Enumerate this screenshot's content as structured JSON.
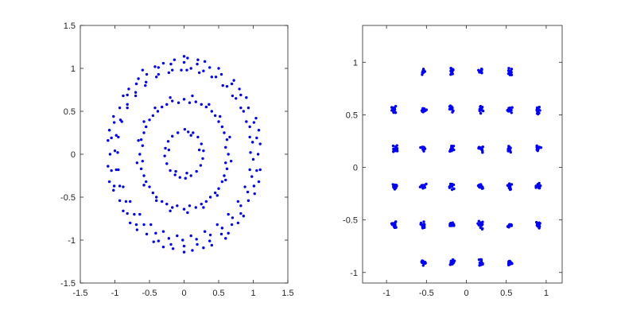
{
  "chart_data": [
    {
      "type": "scatter",
      "title": "",
      "xlabel": "",
      "ylabel": "",
      "xlim": [
        -1.5,
        1.5
      ],
      "ylim": [
        -1.5,
        1.5
      ],
      "xticks": [
        -1.5,
        -1,
        -0.5,
        0,
        0.5,
        1,
        1.5
      ],
      "yticks": [
        -1.5,
        -1,
        -0.5,
        0,
        0.5,
        1,
        1.5
      ],
      "xtick_labels": [
        "-1.5",
        "-1",
        "-0.5",
        "0",
        "0.5",
        "1",
        "1.5"
      ],
      "ytick_labels": [
        "-1.5",
        "-1",
        "-0.5",
        "0",
        "0.5",
        "1",
        "1.5"
      ],
      "grid": false,
      "marker_color": "#0000ff",
      "series": [
        {
          "points": [
            [
              0.06,
              0.26
            ],
            [
              0.13,
              0.25
            ],
            [
              0.2,
              0.2
            ],
            [
              0.25,
              0.12
            ],
            [
              0.28,
              0.04
            ],
            [
              0.27,
              -0.05
            ],
            [
              0.24,
              -0.13
            ],
            [
              0.18,
              -0.2
            ],
            [
              0.1,
              -0.25
            ],
            [
              0.02,
              -0.28
            ],
            [
              -0.06,
              -0.27
            ],
            [
              -0.13,
              -0.24
            ],
            [
              -0.2,
              -0.19
            ],
            [
              -0.25,
              -0.11
            ],
            [
              -0.28,
              -0.02
            ],
            [
              -0.27,
              0.07
            ],
            [
              -0.23,
              0.15
            ],
            [
              -0.17,
              0.21
            ],
            [
              -0.09,
              0.25
            ],
            [
              0.01,
              0.29
            ],
            [
              0.04,
              -0.22
            ],
            [
              -0.22,
              0.05
            ],
            [
              0.22,
              0.05
            ],
            [
              0.1,
              0.22
            ],
            [
              -0.12,
              -0.2
            ],
            [
              0.0,
              0.64
            ],
            [
              0.17,
              0.61
            ],
            [
              0.32,
              0.55
            ],
            [
              0.45,
              0.45
            ],
            [
              0.55,
              0.32
            ],
            [
              0.62,
              0.17
            ],
            [
              0.64,
              0.0
            ],
            [
              0.62,
              -0.17
            ],
            [
              0.55,
              -0.32
            ],
            [
              0.45,
              -0.45
            ],
            [
              0.32,
              -0.55
            ],
            [
              0.17,
              -0.62
            ],
            [
              0.0,
              -0.64
            ],
            [
              -0.17,
              -0.62
            ],
            [
              -0.32,
              -0.55
            ],
            [
              -0.45,
              -0.45
            ],
            [
              -0.55,
              -0.32
            ],
            [
              -0.62,
              -0.17
            ],
            [
              -0.64,
              0.0
            ],
            [
              -0.62,
              0.17
            ],
            [
              -0.55,
              0.32
            ],
            [
              -0.45,
              0.45
            ],
            [
              -0.32,
              0.55
            ],
            [
              -0.17,
              0.62
            ],
            [
              0.08,
              0.6
            ],
            [
              0.25,
              0.58
            ],
            [
              0.4,
              0.5
            ],
            [
              0.5,
              0.38
            ],
            [
              0.58,
              0.25
            ],
            [
              0.6,
              0.08
            ],
            [
              0.6,
              -0.1
            ],
            [
              0.58,
              -0.25
            ],
            [
              0.5,
              -0.4
            ],
            [
              0.38,
              -0.5
            ],
            [
              0.25,
              -0.58
            ],
            [
              0.08,
              -0.6
            ],
            [
              -0.1,
              -0.6
            ],
            [
              -0.25,
              -0.58
            ],
            [
              -0.4,
              -0.5
            ],
            [
              -0.5,
              -0.38
            ],
            [
              -0.58,
              -0.25
            ],
            [
              -0.6,
              -0.08
            ],
            [
              -0.6,
              0.1
            ],
            [
              -0.58,
              0.25
            ],
            [
              -0.5,
              0.4
            ],
            [
              -0.38,
              0.5
            ],
            [
              -0.25,
              0.58
            ],
            [
              -0.08,
              0.6
            ],
            [
              0.12,
              0.68
            ],
            [
              0.36,
              0.58
            ],
            [
              0.52,
              0.44
            ],
            [
              0.66,
              0.2
            ],
            [
              0.68,
              -0.08
            ],
            [
              0.6,
              -0.3
            ],
            [
              0.48,
              -0.48
            ],
            [
              0.28,
              -0.62
            ],
            [
              0.05,
              -0.68
            ],
            [
              -0.2,
              -0.66
            ],
            [
              -0.4,
              -0.54
            ],
            [
              -0.58,
              -0.36
            ],
            [
              -0.68,
              -0.1
            ],
            [
              -0.66,
              0.16
            ],
            [
              -0.58,
              0.38
            ],
            [
              -0.42,
              0.54
            ],
            [
              -0.2,
              0.66
            ],
            [
              0.0,
              1.07
            ],
            [
              0.19,
              1.05
            ],
            [
              0.37,
              1.01
            ],
            [
              0.54,
              0.93
            ],
            [
              0.69,
              0.82
            ],
            [
              0.82,
              0.69
            ],
            [
              0.93,
              0.54
            ],
            [
              1.01,
              0.37
            ],
            [
              1.05,
              0.19
            ],
            [
              1.07,
              0.0
            ],
            [
              1.05,
              -0.19
            ],
            [
              1.01,
              -0.37
            ],
            [
              0.93,
              -0.54
            ],
            [
              0.82,
              -0.69
            ],
            [
              0.69,
              -0.82
            ],
            [
              0.54,
              -0.93
            ],
            [
              0.37,
              -1.01
            ],
            [
              0.19,
              -1.05
            ],
            [
              0.0,
              -1.07
            ],
            [
              -0.19,
              -1.05
            ],
            [
              -0.37,
              -1.01
            ],
            [
              -0.54,
              -0.93
            ],
            [
              -0.69,
              -0.82
            ],
            [
              -0.82,
              -0.69
            ],
            [
              -0.93,
              -0.54
            ],
            [
              -1.01,
              -0.37
            ],
            [
              -1.05,
              -0.19
            ],
            [
              -1.07,
              0.0
            ],
            [
              -1.05,
              0.19
            ],
            [
              -1.01,
              0.37
            ],
            [
              -0.93,
              0.54
            ],
            [
              -0.82,
              0.69
            ],
            [
              -0.69,
              0.82
            ],
            [
              -0.54,
              0.93
            ],
            [
              -0.37,
              1.01
            ],
            [
              -0.19,
              1.05
            ],
            [
              0.1,
              1.0
            ],
            [
              0.28,
              0.97
            ],
            [
              0.46,
              0.9
            ],
            [
              0.62,
              0.79
            ],
            [
              0.75,
              0.65
            ],
            [
              0.86,
              0.5
            ],
            [
              0.95,
              0.32
            ],
            [
              0.99,
              0.14
            ],
            [
              1.0,
              -0.06
            ],
            [
              0.98,
              -0.26
            ],
            [
              0.92,
              -0.44
            ],
            [
              0.82,
              -0.6
            ],
            [
              0.7,
              -0.74
            ],
            [
              0.55,
              -0.86
            ],
            [
              0.38,
              -0.94
            ],
            [
              0.18,
              -0.99
            ],
            [
              -0.02,
              -1.0
            ],
            [
              -0.22,
              -0.98
            ],
            [
              -0.41,
              -0.92
            ],
            [
              -0.58,
              -0.82
            ],
            [
              -0.72,
              -0.7
            ],
            [
              -0.84,
              -0.55
            ],
            [
              -0.93,
              -0.37
            ],
            [
              -0.98,
              -0.18
            ],
            [
              -1.0,
              0.04
            ],
            [
              -0.98,
              0.22
            ],
            [
              -0.92,
              0.4
            ],
            [
              -0.82,
              0.58
            ],
            [
              -0.7,
              0.72
            ],
            [
              -0.55,
              0.84
            ],
            [
              -0.37,
              0.93
            ],
            [
              -0.17,
              0.98
            ],
            [
              0.05,
              1.12
            ],
            [
              0.3,
              1.08
            ],
            [
              0.5,
              1.0
            ],
            [
              0.72,
              0.86
            ],
            [
              0.9,
              0.66
            ],
            [
              1.04,
              0.42
            ],
            [
              1.1,
              0.12
            ],
            [
              1.1,
              -0.18
            ],
            [
              1.02,
              -0.46
            ],
            [
              0.86,
              -0.72
            ],
            [
              0.64,
              -0.92
            ],
            [
              0.4,
              -1.06
            ],
            [
              0.12,
              -1.12
            ],
            [
              -0.16,
              -1.1
            ],
            [
              -0.44,
              -1.02
            ],
            [
              -0.68,
              -0.88
            ],
            [
              -0.88,
              -0.66
            ],
            [
              -1.02,
              -0.42
            ],
            [
              -1.1,
              -0.14
            ],
            [
              -1.1,
              0.16
            ],
            [
              -1.02,
              0.44
            ],
            [
              -0.88,
              0.68
            ],
            [
              -0.66,
              0.88
            ],
            [
              -0.42,
              1.02
            ],
            [
              -0.14,
              1.1
            ],
            [
              0.2,
              1.1
            ],
            [
              -0.3,
              1.06
            ],
            [
              0.8,
              0.76
            ],
            [
              -0.8,
              0.76
            ],
            [
              1.08,
              0.28
            ],
            [
              -1.08,
              0.28
            ],
            [
              1.08,
              -0.32
            ],
            [
              -1.08,
              -0.32
            ],
            [
              0.78,
              -0.8
            ],
            [
              -0.78,
              -0.8
            ],
            [
              0.28,
              -1.09
            ],
            [
              -0.3,
              -1.08
            ],
            [
              0.0,
              -1.14
            ],
            [
              0.0,
              1.14
            ],
            [
              0.6,
              -0.98
            ],
            [
              -0.6,
              0.98
            ],
            [
              0.04,
              0.98
            ],
            [
              0.22,
              0.95
            ],
            [
              0.4,
              0.9
            ],
            [
              0.56,
              0.8
            ],
            [
              0.7,
              0.68
            ],
            [
              0.82,
              0.54
            ],
            [
              0.9,
              0.38
            ],
            [
              0.95,
              0.2
            ],
            [
              0.96,
              0.02
            ],
            [
              0.95,
              -0.18
            ],
            [
              0.88,
              -0.38
            ],
            [
              0.78,
              -0.55
            ],
            [
              0.64,
              -0.7
            ],
            [
              0.48,
              -0.82
            ],
            [
              0.3,
              -0.9
            ],
            [
              0.1,
              -0.95
            ],
            [
              -0.1,
              -0.95
            ],
            [
              -0.3,
              -0.9
            ],
            [
              -0.48,
              -0.82
            ],
            [
              -0.64,
              -0.7
            ],
            [
              -0.78,
              -0.55
            ],
            [
              -0.88,
              -0.38
            ],
            [
              -0.95,
              -0.18
            ],
            [
              -0.96,
              0.02
            ],
            [
              -0.95,
              0.2
            ],
            [
              -0.9,
              0.38
            ],
            [
              -0.82,
              0.54
            ],
            [
              -0.7,
              0.68
            ],
            [
              -0.56,
              0.8
            ],
            [
              -0.4,
              0.9
            ],
            [
              -0.22,
              0.95
            ],
            [
              -0.04,
              0.98
            ]
          ]
        }
      ]
    },
    {
      "type": "scatter",
      "title": "",
      "xlabel": "",
      "ylabel": "",
      "xlim": [
        -1.3,
        1.2
      ],
      "ylim": [
        -1.1,
        1.35
      ],
      "xticks": [
        -1,
        -0.5,
        0,
        0.5,
        1
      ],
      "yticks": [
        -1,
        -0.5,
        0,
        0.5,
        1
      ],
      "xtick_labels": [
        "-1",
        "-0.5",
        "0",
        "0.5",
        "1"
      ],
      "ytick_labels": [
        "-1",
        "-0.5",
        "0",
        "0.5",
        "1"
      ],
      "grid": false,
      "marker_color": "#0000ff",
      "cluster_centers": [
        [
          -0.54,
          0.91
        ],
        [
          -0.18,
          0.91
        ],
        [
          0.18,
          0.91
        ],
        [
          0.54,
          0.91
        ],
        [
          -0.9,
          0.55
        ],
        [
          -0.54,
          0.55
        ],
        [
          -0.18,
          0.55
        ],
        [
          0.18,
          0.55
        ],
        [
          0.54,
          0.55
        ],
        [
          0.9,
          0.55
        ],
        [
          -0.9,
          0.18
        ],
        [
          -0.54,
          0.18
        ],
        [
          -0.18,
          0.18
        ],
        [
          0.18,
          0.18
        ],
        [
          0.54,
          0.18
        ],
        [
          0.9,
          0.18
        ],
        [
          -0.9,
          -0.18
        ],
        [
          -0.54,
          -0.18
        ],
        [
          -0.18,
          -0.18
        ],
        [
          0.18,
          -0.18
        ],
        [
          0.54,
          -0.18
        ],
        [
          0.9,
          -0.18
        ],
        [
          -0.9,
          -0.55
        ],
        [
          -0.54,
          -0.55
        ],
        [
          -0.18,
          -0.55
        ],
        [
          0.18,
          -0.55
        ],
        [
          0.54,
          -0.55
        ],
        [
          0.9,
          -0.55
        ],
        [
          -0.54,
          -0.91
        ],
        [
          -0.18,
          -0.91
        ],
        [
          0.18,
          -0.91
        ],
        [
          0.54,
          -0.91
        ]
      ],
      "cluster_spread": 0.045
    }
  ]
}
